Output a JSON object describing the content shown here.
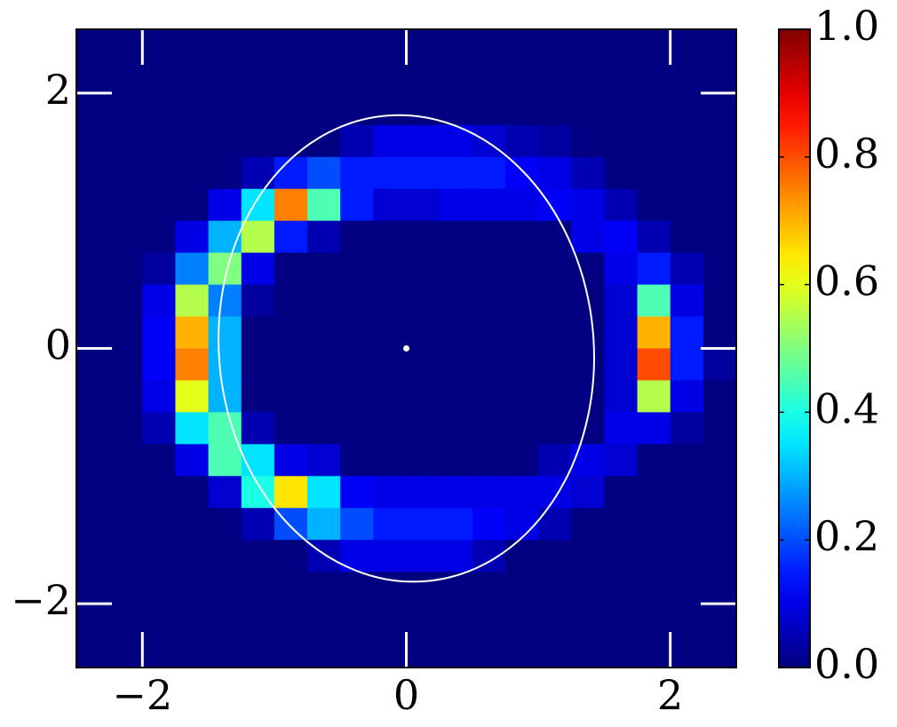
{
  "chart_data": {
    "type": "heatmap",
    "xlim": [
      -2.5,
      2.5
    ],
    "ylim": [
      -2.5,
      2.5
    ],
    "xticks": [
      {
        "value": -2,
        "label": "−2"
      },
      0,
      2
    ],
    "yticks": [
      {
        "value": -2,
        "label": "−2"
      },
      0,
      2
    ],
    "colormap": "jet",
    "clim": [
      0,
      1
    ],
    "cticks": [
      {
        "value": 0,
        "label": "0.0"
      },
      {
        "value": 0.2,
        "label": "0.2"
      },
      {
        "value": 0.4,
        "label": "0.4"
      },
      {
        "value": 0.6,
        "label": "0.6"
      },
      {
        "value": 0.8,
        "label": "0.8"
      },
      {
        "value": 1,
        "label": "1.0"
      }
    ],
    "z": [
      [
        0,
        0,
        0,
        0,
        0,
        0,
        0,
        0,
        0,
        0,
        0,
        0,
        0,
        0,
        0,
        0,
        0,
        0,
        0,
        0
      ],
      [
        0,
        0,
        0,
        0,
        0,
        0,
        0,
        0,
        0,
        0,
        0,
        0,
        0,
        0,
        0,
        0,
        0,
        0,
        0,
        0
      ],
      [
        0,
        0,
        0,
        0,
        0,
        0,
        0,
        0,
        0,
        0,
        0,
        0,
        0,
        0,
        0,
        0,
        0,
        0,
        0,
        0
      ],
      [
        0,
        0,
        0,
        0,
        0,
        0,
        0,
        0,
        0.05,
        0.1,
        0.1,
        0.1,
        0.08,
        0.05,
        0.03,
        0,
        0,
        0,
        0,
        0
      ],
      [
        0,
        0,
        0,
        0,
        0,
        0.05,
        0.15,
        0.2,
        0.15,
        0.15,
        0.15,
        0.15,
        0.15,
        0.12,
        0.1,
        0.05,
        0,
        0,
        0,
        0
      ],
      [
        0,
        0,
        0,
        0,
        0.1,
        0.35,
        0.75,
        0.45,
        0.15,
        0.08,
        0.08,
        0.1,
        0.1,
        0.1,
        0.12,
        0.1,
        0.05,
        0,
        0,
        0
      ],
      [
        0,
        0,
        0,
        0.1,
        0.3,
        0.55,
        0.15,
        0.05,
        0,
        0,
        0,
        0,
        0,
        0,
        0,
        0.1,
        0.12,
        0.05,
        0,
        0
      ],
      [
        0,
        0,
        0.03,
        0.25,
        0.5,
        0.1,
        0,
        0,
        0,
        0,
        0,
        0,
        0,
        0,
        0,
        0,
        0.1,
        0.15,
        0.05,
        0
      ],
      [
        0,
        0,
        0.1,
        0.55,
        0.25,
        0.03,
        0,
        0,
        0,
        0,
        0,
        0,
        0,
        0,
        0,
        0,
        0.08,
        0.45,
        0.1,
        0
      ],
      [
        0,
        0,
        0.12,
        0.7,
        0.3,
        0,
        0,
        0,
        0,
        0,
        0,
        0,
        0,
        0,
        0,
        0,
        0.08,
        0.7,
        0.15,
        0
      ],
      [
        0,
        0,
        0.12,
        0.75,
        0.3,
        0,
        0,
        0,
        0,
        0,
        0,
        0,
        0,
        0,
        0,
        0,
        0.08,
        0.8,
        0.15,
        0.03
      ],
      [
        0,
        0,
        0.1,
        0.6,
        0.3,
        0,
        0,
        0,
        0,
        0,
        0,
        0,
        0,
        0,
        0,
        0,
        0.08,
        0.55,
        0.1,
        0
      ],
      [
        0,
        0,
        0.05,
        0.35,
        0.45,
        0.05,
        0,
        0,
        0,
        0,
        0,
        0,
        0,
        0,
        0,
        0,
        0.1,
        0.1,
        0.03,
        0
      ],
      [
        0,
        0,
        0,
        0.1,
        0.45,
        0.35,
        0.1,
        0.08,
        0,
        0,
        0,
        0,
        0,
        0,
        0.05,
        0.1,
        0.08,
        0,
        0,
        0
      ],
      [
        0,
        0,
        0,
        0,
        0.08,
        0.4,
        0.65,
        0.35,
        0.12,
        0.1,
        0.1,
        0.1,
        0.1,
        0.1,
        0.1,
        0.08,
        0,
        0,
        0,
        0
      ],
      [
        0,
        0,
        0,
        0,
        0,
        0.05,
        0.2,
        0.3,
        0.2,
        0.15,
        0.15,
        0.15,
        0.12,
        0.1,
        0.05,
        0,
        0,
        0,
        0,
        0
      ],
      [
        0,
        0,
        0,
        0,
        0,
        0,
        0,
        0.05,
        0.1,
        0.1,
        0.1,
        0.1,
        0.05,
        0,
        0,
        0,
        0,
        0,
        0,
        0
      ],
      [
        0,
        0,
        0,
        0,
        0,
        0,
        0,
        0,
        0,
        0,
        0,
        0,
        0,
        0,
        0,
        0,
        0,
        0,
        0,
        0
      ],
      [
        0,
        0,
        0,
        0,
        0,
        0,
        0,
        0,
        0,
        0,
        0,
        0,
        0,
        0,
        0,
        0,
        0,
        0,
        0,
        0
      ],
      [
        0,
        0,
        0,
        0,
        0,
        0,
        0,
        0,
        0,
        0,
        0,
        0,
        0,
        0,
        0,
        0,
        0,
        0,
        0,
        0
      ]
    ],
    "ellipse": {
      "cx": 0,
      "cy": 0,
      "rx": 1.42,
      "ry": 1.83,
      "angle": 5,
      "color": "#ffffff"
    },
    "point": {
      "x": 0,
      "y": 0,
      "color": "#ffffff"
    }
  }
}
